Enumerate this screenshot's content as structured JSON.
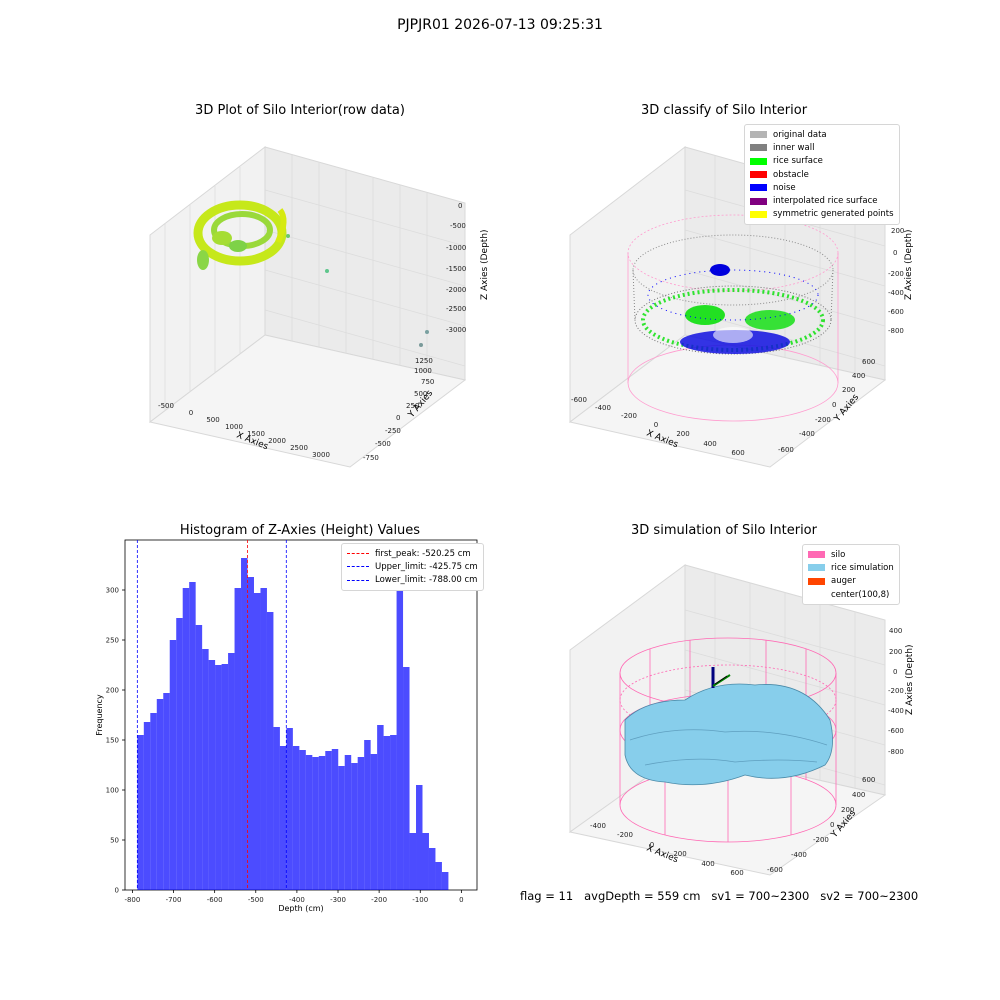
{
  "figure": {
    "suptitle": "PJPJR01 2026-07-13 09:25:31",
    "footer": "flag = 11   avgDepth = 559 cm   sv1 = 700~2300   sv2 = 700~2300"
  },
  "panels": {
    "raw": {
      "title": "3D Plot of Silo Interior(row data)",
      "xlabel": "X Axies",
      "ylabel": "Y Axies",
      "zlabel": "Z Axies (Depth)",
      "xticks": [
        "-500",
        "0",
        "500",
        "1000",
        "1500",
        "2000",
        "2500",
        "3000"
      ],
      "yticks": [
        "-750",
        "-500",
        "-250",
        "0",
        "250",
        "500",
        "750",
        "1000",
        "1250"
      ],
      "zticks": [
        "0",
        "-500",
        "-1000",
        "-1500",
        "-2000",
        "-2500",
        "-3000"
      ]
    },
    "classify": {
      "title": "3D classify of Silo Interior",
      "xlabel": "X Axies",
      "ylabel": "Y Axies",
      "zlabel": "Z Axies (Depth)",
      "xticks": [
        "-600",
        "-400",
        "-200",
        "0",
        "200",
        "400",
        "600"
      ],
      "yticks": [
        "-600",
        "-400",
        "-200",
        "0",
        "200",
        "400",
        "600"
      ],
      "zticks": [
        "200",
        "0",
        "-200",
        "-400",
        "-600",
        "-800"
      ],
      "legend": [
        {
          "label": "original data",
          "color": "#b4b4b4"
        },
        {
          "label": "inner wall",
          "color": "#808080"
        },
        {
          "label": "rice surface",
          "color": "#00ff00"
        },
        {
          "label": "obstacle",
          "color": "#ff0000"
        },
        {
          "label": "noise",
          "color": "#0000ff"
        },
        {
          "label": "interpolated rice surface",
          "color": "#800080"
        },
        {
          "label": "symmetric generated points",
          "color": "#ffff00"
        }
      ]
    },
    "simulation": {
      "title": "3D simulation of Silo Interior",
      "xlabel": "X Axies",
      "ylabel": "Y Axies",
      "zlabel": "Z Axies (Depth)",
      "xticks": [
        "-400",
        "-200",
        "0",
        "200",
        "400",
        "600"
      ],
      "yticks": [
        "-600",
        "-400",
        "-200",
        "0",
        "200",
        "400",
        "600"
      ],
      "zticks": [
        "400",
        "200",
        "0",
        "-200",
        "-400",
        "-600",
        "-800"
      ],
      "legend": [
        {
          "label": "silo",
          "color": "#ff69b4"
        },
        {
          "label": "rice simulation",
          "color": "#87ceeb"
        },
        {
          "label": "auger",
          "color": "#ff4500"
        },
        {
          "label": "center(100,8)",
          "color": "#ffffff"
        }
      ]
    }
  },
  "chart_data": {
    "type": "bar",
    "title": "Histogram of Z-Axies (Height) Values",
    "xlabel": "Depth (cm)",
    "ylabel": "Frequency",
    "xlim": [
      -818,
      38
    ],
    "ylim": [
      0,
      350
    ],
    "xticks": [
      -800,
      -700,
      -600,
      -500,
      -400,
      -300,
      -200,
      -100,
      0
    ],
    "yticks": [
      0,
      50,
      100,
      150,
      200,
      250,
      300
    ],
    "bin_start": -788.0,
    "bin_width": 15.76,
    "values": [
      155,
      168,
      177,
      191,
      197,
      250,
      272,
      302,
      308,
      265,
      241,
      230,
      225,
      226,
      237,
      302,
      332,
      313,
      297,
      302,
      278,
      163,
      144,
      162,
      144,
      140,
      135,
      133,
      134,
      139,
      141,
      124,
      135,
      127,
      133,
      150,
      136,
      165,
      154,
      155,
      310,
      223,
      57,
      105,
      57,
      42,
      28,
      18
    ],
    "series_color": "#0000ff",
    "vlines": [
      {
        "label": "first_peak: -520.25 cm",
        "x": -520.25,
        "color": "#ff0000"
      },
      {
        "label": "Upper_limit: -425.75 cm",
        "x": -425.75,
        "color": "#0000ff"
      },
      {
        "label": "Lower_limit: -788.00 cm",
        "x": -788.0,
        "color": "#0000ff"
      }
    ],
    "legend_position": "top-right"
  }
}
